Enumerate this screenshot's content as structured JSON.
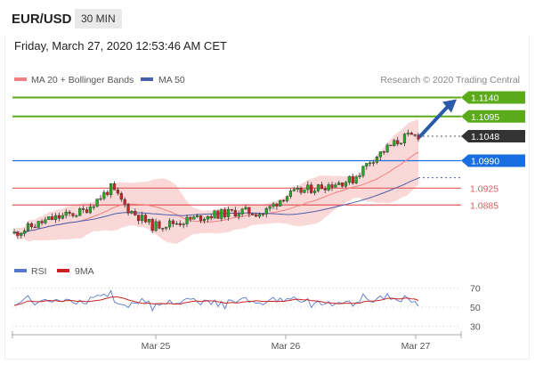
{
  "header": {
    "pair": "EUR/USD",
    "timeframe": "30 MIN",
    "datetime": "Friday, March 27, 2020 12:53:46 AM CET"
  },
  "legend": {
    "ma20": "MA 20 + Bollinger Bands",
    "ma50": "MA 50",
    "credit": "Research © 2020 Trading Central"
  },
  "rsi_legend": {
    "rsi": "RSI",
    "ma9": "9MA"
  },
  "colors": {
    "candle_up": "#22aa22",
    "candle_down": "#cc2222",
    "ma20": "#f08080",
    "bollinger_fill": "#f9c8c8",
    "ma50": "#4a5fa8",
    "resistance": "#5aaa1a",
    "current": "#333333",
    "pivot": "#1a6fe0",
    "support": "#e05a5a",
    "arrow": "#2a5aa8",
    "rsi": "#5577cc",
    "rsi_ma": "#cc2222"
  },
  "chart_data": [
    {
      "type": "candlestick",
      "title": "",
      "x": [
        "Mar 25",
        "Mar 26",
        "Mar 27"
      ],
      "ylim": [
        1.078,
        1.116
      ],
      "levels": [
        {
          "value": 1.114,
          "label": "1.1140",
          "kind": "resistance"
        },
        {
          "value": 1.1095,
          "label": "1.1095",
          "kind": "resistance"
        },
        {
          "value": 1.1048,
          "label": "1.1048",
          "kind": "current"
        },
        {
          "value": 1.099,
          "label": "1.0990",
          "kind": "pivot"
        },
        {
          "value": 1.0925,
          "label": "1.0925",
          "kind": "support"
        },
        {
          "value": 1.0885,
          "label": "1.0885",
          "kind": "support"
        }
      ],
      "series": [
        {
          "name": "MA 20 + Bollinger Bands"
        },
        {
          "name": "MA 50"
        }
      ]
    },
    {
      "type": "line",
      "title": "",
      "yticks": [
        70,
        50,
        30
      ],
      "ylim": [
        25,
        75
      ],
      "series": [
        {
          "name": "RSI"
        },
        {
          "name": "9MA"
        }
      ]
    }
  ]
}
